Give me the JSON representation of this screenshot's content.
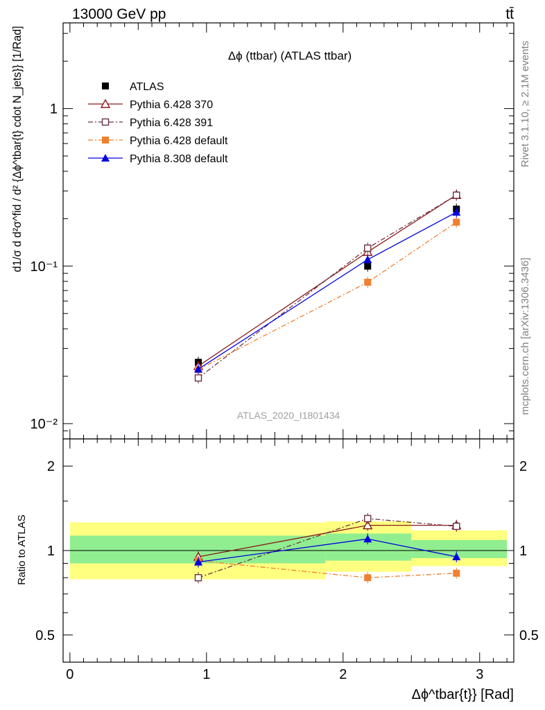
{
  "header": {
    "left": "13000 GeV pp",
    "right": "tt̄"
  },
  "side_text": {
    "top": "Rivet 3.1.10, ≥ 2.1M events",
    "bottom": "mcplots.cern.ch [arXiv:1306.3436]"
  },
  "chart_data": [
    {
      "type": "line",
      "title": "Δϕ (ttbar) (ATLAS ttbar)",
      "watermark": "ATLAS_2020_I1801434",
      "ylabel": "d1/σ d d²σ^fid / d² {Δϕ^tbar{t} cdot N_jets}} [1/Rad]",
      "yscale": "log",
      "ylim": [
        0.008,
        3.5
      ],
      "xlim": [
        -0.05,
        3.25
      ],
      "y_ticks": [
        {
          "value": 0.01,
          "label": "10⁻²"
        },
        {
          "value": 0.1,
          "label": "10⁻¹"
        },
        {
          "value": 1,
          "label": "1"
        }
      ],
      "legend_position": "top-left",
      "series": [
        {
          "name": "ATLAS",
          "color": "#000000",
          "marker": "square-filled",
          "line": "none",
          "x": [
            0.94,
            2.18,
            2.83
          ],
          "y": [
            0.0245,
            0.1,
            0.23
          ]
        },
        {
          "name": "Pythia 6.428 370",
          "color": "#8b1a1a",
          "marker": "triangle-open",
          "line": "solid",
          "x": [
            0.94,
            2.18,
            2.83
          ],
          "y": [
            0.0232,
            0.123,
            0.283
          ]
        },
        {
          "name": "Pythia 6.428 391",
          "color": "#6b3040",
          "marker": "square-open",
          "line": "dashdot",
          "x": [
            0.94,
            2.18,
            2.83
          ],
          "y": [
            0.0195,
            0.13,
            0.282
          ]
        },
        {
          "name": "Pythia 6.428 default",
          "color": "#f08030",
          "marker": "square-filled",
          "line": "dashdot",
          "x": [
            0.94,
            2.18,
            2.83
          ],
          "y": [
            0.022,
            0.079,
            0.19
          ]
        },
        {
          "name": "Pythia 8.308 default",
          "color": "#0000e0",
          "marker": "triangle-filled",
          "line": "solid",
          "x": [
            0.94,
            2.18,
            2.83
          ],
          "y": [
            0.0222,
            0.11,
            0.22
          ]
        }
      ]
    },
    {
      "type": "line",
      "ylabel": "Ratio to ATLAS",
      "xlabel": "Δϕ^tbar{t}} [Rad]",
      "yscale": "log",
      "ylim": [
        0.4,
        2.5
      ],
      "xlim": [
        -0.05,
        3.25
      ],
      "x_ticks": [
        0,
        1,
        2,
        3
      ],
      "y_ticks": [
        {
          "value": 0.5,
          "label": "0.5"
        },
        {
          "value": 1,
          "label": "1"
        },
        {
          "value": 2,
          "label": "2"
        }
      ],
      "bands": [
        {
          "x0": 0,
          "x1": 1.87,
          "inner": [
            0.9,
            1.13
          ],
          "outer": [
            0.79,
            1.26
          ]
        },
        {
          "x0": 1.87,
          "x1": 2.5,
          "inner": [
            0.92,
            1.15
          ],
          "outer": [
            0.84,
            1.27
          ]
        },
        {
          "x0": 2.5,
          "x1": 3.2,
          "inner": [
            0.94,
            1.09
          ],
          "outer": [
            0.88,
            1.18
          ]
        }
      ],
      "series": [
        {
          "name": "Pythia 6.428 370",
          "color": "#8b1a1a",
          "marker": "triangle-open",
          "line": "solid",
          "x": [
            0.94,
            2.18,
            2.83
          ],
          "y": [
            0.95,
            1.23,
            1.23
          ]
        },
        {
          "name": "Pythia 6.428 391",
          "color": "#6b3040",
          "marker": "square-open",
          "line": "dashdot",
          "x": [
            0.94,
            2.18,
            2.83
          ],
          "y": [
            0.8,
            1.3,
            1.22
          ]
        },
        {
          "name": "Pythia 6.428 default",
          "color": "#f08030",
          "marker": "square-filled",
          "line": "dashdot",
          "x": [
            0.94,
            2.18,
            2.83
          ],
          "y": [
            0.92,
            0.8,
            0.83
          ]
        },
        {
          "name": "Pythia 8.308 default",
          "color": "#0000e0",
          "marker": "triangle-filled",
          "line": "solid",
          "x": [
            0.94,
            2.18,
            2.83
          ],
          "y": [
            0.91,
            1.1,
            0.95
          ]
        }
      ]
    }
  ]
}
